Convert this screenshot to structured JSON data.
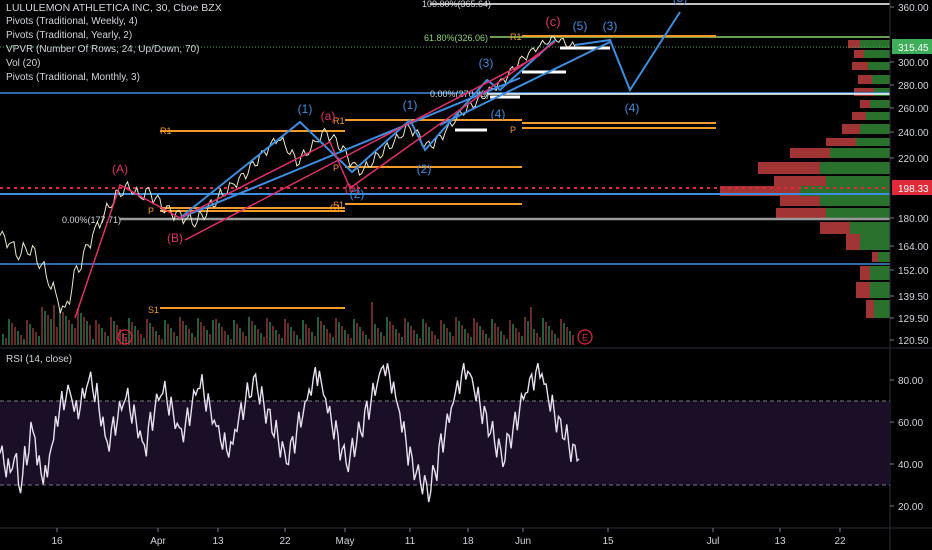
{
  "header": {
    "symbol_line": "LULULEMON ATHLETICA INC, 30, Cboe BZX",
    "indicators": [
      "Pivots (Traditional, Weekly, 4)",
      "Pivots (Traditional, Yearly, 2)",
      "VPVR (Number Of Rows, 24, Up/Down, 70)",
      "Vol (20)",
      "Pivots (Traditional, Monthly, 3)"
    ]
  },
  "rsi_panel": {
    "label": "RSI (14, close)"
  },
  "colors": {
    "background": "#000000",
    "price_line": "#e8e8c8",
    "wave_blue": "#3d8ee0",
    "wave_pink": "#e0306a",
    "pivot_orange": "#f39a2c",
    "fib_green": "#8fd36a",
    "rsi_line": "#e8e0f0",
    "rsi_band": "#1a0f26",
    "vp_up": "#2f7d32",
    "vp_down": "#b23a3a",
    "current_price": "#3fae58",
    "marked_price": "#e02a3a"
  },
  "chart_data": [
    {
      "type": "line",
      "title": "LULULEMON ATHLETICA INC, 30, Cboe BZX",
      "x_tick_labels": [
        "16",
        "Apr",
        "13",
        "22",
        "May",
        "11",
        "18",
        "Jun",
        "15",
        "Jul",
        "13",
        "22"
      ],
      "y_tick_labels": [
        "360.00",
        "315.45",
        "300.00",
        "280.00",
        "260.00",
        "240.00",
        "220.00",
        "198.33",
        "180.00",
        "164.00",
        "152.00",
        "139.50",
        "129.50",
        "120.50"
      ],
      "ylim": [
        120.5,
        360
      ],
      "last_price": 315.45,
      "marked_price": 198.33,
      "fib_labels": [
        "100.00%(365.64)",
        "61.80%(326.06)",
        "0.00%(270.89)",
        "0.00%(177.71)"
      ],
      "pivot_labels": [
        "R1",
        "P",
        "S1",
        "R1",
        "P",
        "S1",
        "R1",
        "P",
        "S1",
        "R1",
        "P",
        "S1",
        "S1"
      ],
      "wave_labels_blue": [
        "(1)",
        "(2)",
        "(1)",
        "(2)",
        "(3)",
        "(4)",
        "(5)",
        "(3)",
        "(4)",
        "(5)"
      ],
      "wave_labels_pink": [
        "(A)",
        "(B)",
        "(a)",
        "(b)",
        "(c)"
      ],
      "event_markers": [
        "E",
        "E"
      ],
      "price_series": [
        [
          0,
          170
        ],
        [
          1,
          166
        ],
        [
          2,
          160
        ],
        [
          3,
          164
        ],
        [
          4,
          159
        ],
        [
          5,
          150
        ],
        [
          6,
          140
        ],
        [
          7,
          131
        ],
        [
          8,
          148
        ],
        [
          9,
          158
        ],
        [
          10,
          170
        ],
        [
          11,
          180
        ],
        [
          12,
          190
        ],
        [
          13,
          197
        ],
        [
          14,
          200
        ],
        [
          15,
          193
        ],
        [
          16,
          196
        ],
        [
          17,
          190
        ],
        [
          18,
          184
        ],
        [
          19,
          182
        ],
        [
          20,
          180
        ],
        [
          21,
          178
        ],
        [
          22,
          183
        ],
        [
          23,
          190
        ],
        [
          24,
          195
        ],
        [
          25,
          200
        ],
        [
          26,
          205
        ],
        [
          27,
          212
        ],
        [
          28,
          220
        ],
        [
          29,
          228
        ],
        [
          30,
          236
        ],
        [
          31,
          228
        ],
        [
          32,
          218
        ],
        [
          33,
          224
        ],
        [
          34,
          232
        ],
        [
          35,
          240
        ],
        [
          36,
          234
        ],
        [
          37,
          226
        ],
        [
          38,
          215
        ],
        [
          39,
          210
        ],
        [
          40,
          217
        ],
        [
          41,
          224
        ],
        [
          42,
          230
        ],
        [
          43,
          236
        ],
        [
          44,
          244
        ],
        [
          45,
          238
        ],
        [
          46,
          228
        ],
        [
          47,
          232
        ],
        [
          48,
          240
        ],
        [
          49,
          250
        ],
        [
          50,
          258
        ],
        [
          51,
          264
        ],
        [
          52,
          270
        ],
        [
          53,
          276
        ],
        [
          54,
          282
        ],
        [
          55,
          290
        ],
        [
          56,
          300
        ],
        [
          57,
          308
        ],
        [
          58,
          316
        ],
        [
          59,
          322
        ],
        [
          60,
          326
        ],
        [
          61,
          320
        ],
        [
          62,
          316
        ]
      ]
    },
    {
      "type": "line",
      "title": "RSI (14, close)",
      "y_tick_labels": [
        "80.00",
        "60.00",
        "40.00",
        "20.00"
      ],
      "ylim": [
        10,
        90
      ],
      "band": [
        30,
        70
      ],
      "values": [
        45,
        38,
        42,
        30,
        44,
        56,
        40,
        35,
        48,
        62,
        70,
        74,
        66,
        72,
        80,
        74,
        62,
        50,
        58,
        66,
        72,
        64,
        56,
        48,
        60,
        70,
        75,
        68,
        60,
        55,
        62,
        72,
        78,
        70,
        62,
        56,
        50,
        48,
        58,
        66,
        74,
        80,
        72,
        64,
        56,
        48,
        42,
        50,
        60,
        68,
        76,
        82,
        74,
        64,
        56,
        46,
        40,
        48,
        56,
        66,
        74,
        82,
        86,
        78,
        68,
        56,
        44,
        36,
        30,
        26,
        36,
        50,
        60,
        70,
        78,
        84,
        80,
        72,
        64,
        56,
        48,
        42,
        52,
        60,
        70,
        76,
        80,
        84,
        76,
        68,
        60,
        54,
        46,
        44
      ]
    }
  ]
}
